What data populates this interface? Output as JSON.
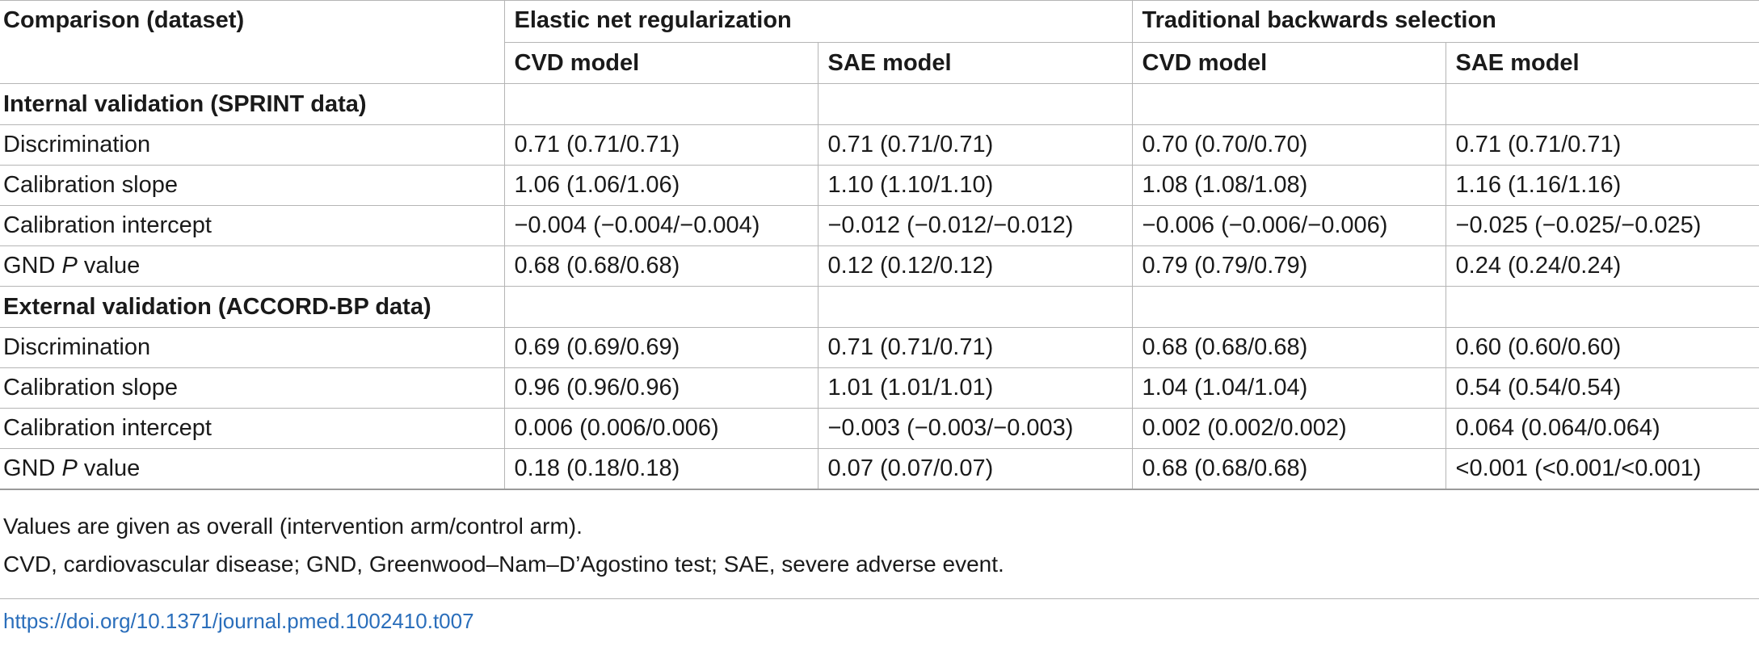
{
  "table": {
    "header": {
      "first_col": "Comparison (dataset)",
      "group1": "Elastic net regularization",
      "group2": "Traditional backwards selection",
      "sub": [
        "CVD model",
        "SAE model",
        "CVD model",
        "SAE model"
      ]
    },
    "sections": [
      {
        "title": "Internal validation (SPRINT data)",
        "rows": [
          {
            "label_pre": "Discrimination",
            "label_ital": "",
            "label_post": "",
            "values": [
              "0.71 (0.71/0.71)",
              "0.71 (0.71/0.71)",
              "0.70 (0.70/0.70)",
              "0.71 (0.71/0.71)"
            ]
          },
          {
            "label_pre": "Calibration slope",
            "label_ital": "",
            "label_post": "",
            "values": [
              "1.06 (1.06/1.06)",
              "1.10 (1.10/1.10)",
              "1.08 (1.08/1.08)",
              "1.16 (1.16/1.16)"
            ]
          },
          {
            "label_pre": "Calibration intercept",
            "label_ital": "",
            "label_post": "",
            "values": [
              "−0.004 (−0.004/−0.004)",
              "−0.012 (−0.012/−0.012)",
              "−0.006 (−0.006/−0.006)",
              "−0.025 (−0.025/−0.025)"
            ]
          },
          {
            "label_pre": "GND ",
            "label_ital": "P",
            "label_post": " value",
            "values": [
              "0.68 (0.68/0.68)",
              "0.12 (0.12/0.12)",
              "0.79 (0.79/0.79)",
              "0.24 (0.24/0.24)"
            ]
          }
        ]
      },
      {
        "title": "External validation (ACCORD-BP data)",
        "rows": [
          {
            "label_pre": "Discrimination",
            "label_ital": "",
            "label_post": "",
            "values": [
              "0.69 (0.69/0.69)",
              "0.71 (0.71/0.71)",
              "0.68 (0.68/0.68)",
              "0.60 (0.60/0.60)"
            ]
          },
          {
            "label_pre": "Calibration slope",
            "label_ital": "",
            "label_post": "",
            "values": [
              "0.96 (0.96/0.96)",
              "1.01 (1.01/1.01)",
              "1.04 (1.04/1.04)",
              "0.54 (0.54/0.54)"
            ]
          },
          {
            "label_pre": "Calibration intercept",
            "label_ital": "",
            "label_post": "",
            "values": [
              "0.006 (0.006/0.006)",
              "−0.003 (−0.003/−0.003)",
              "0.002 (0.002/0.002)",
              "0.064 (0.064/0.064)"
            ]
          },
          {
            "label_pre": "GND ",
            "label_ital": "P",
            "label_post": " value",
            "values": [
              "0.18 (0.18/0.18)",
              "0.07 (0.07/0.07)",
              "0.68 (0.68/0.68)",
              "<0.001 (<0.001/<0.001)"
            ]
          }
        ]
      }
    ]
  },
  "notes": [
    "Values are given as overall (intervention arm/control arm).",
    "CVD, cardiovascular disease; GND, Greenwood–Nam–D’Agostino test; SAE, severe adverse event."
  ],
  "doi": "https://doi.org/10.1371/journal.pmed.1002410.t007",
  "colors": {
    "text": "#1a1a1a",
    "rule": "#b5b5b5",
    "link": "#2a6ebb"
  }
}
